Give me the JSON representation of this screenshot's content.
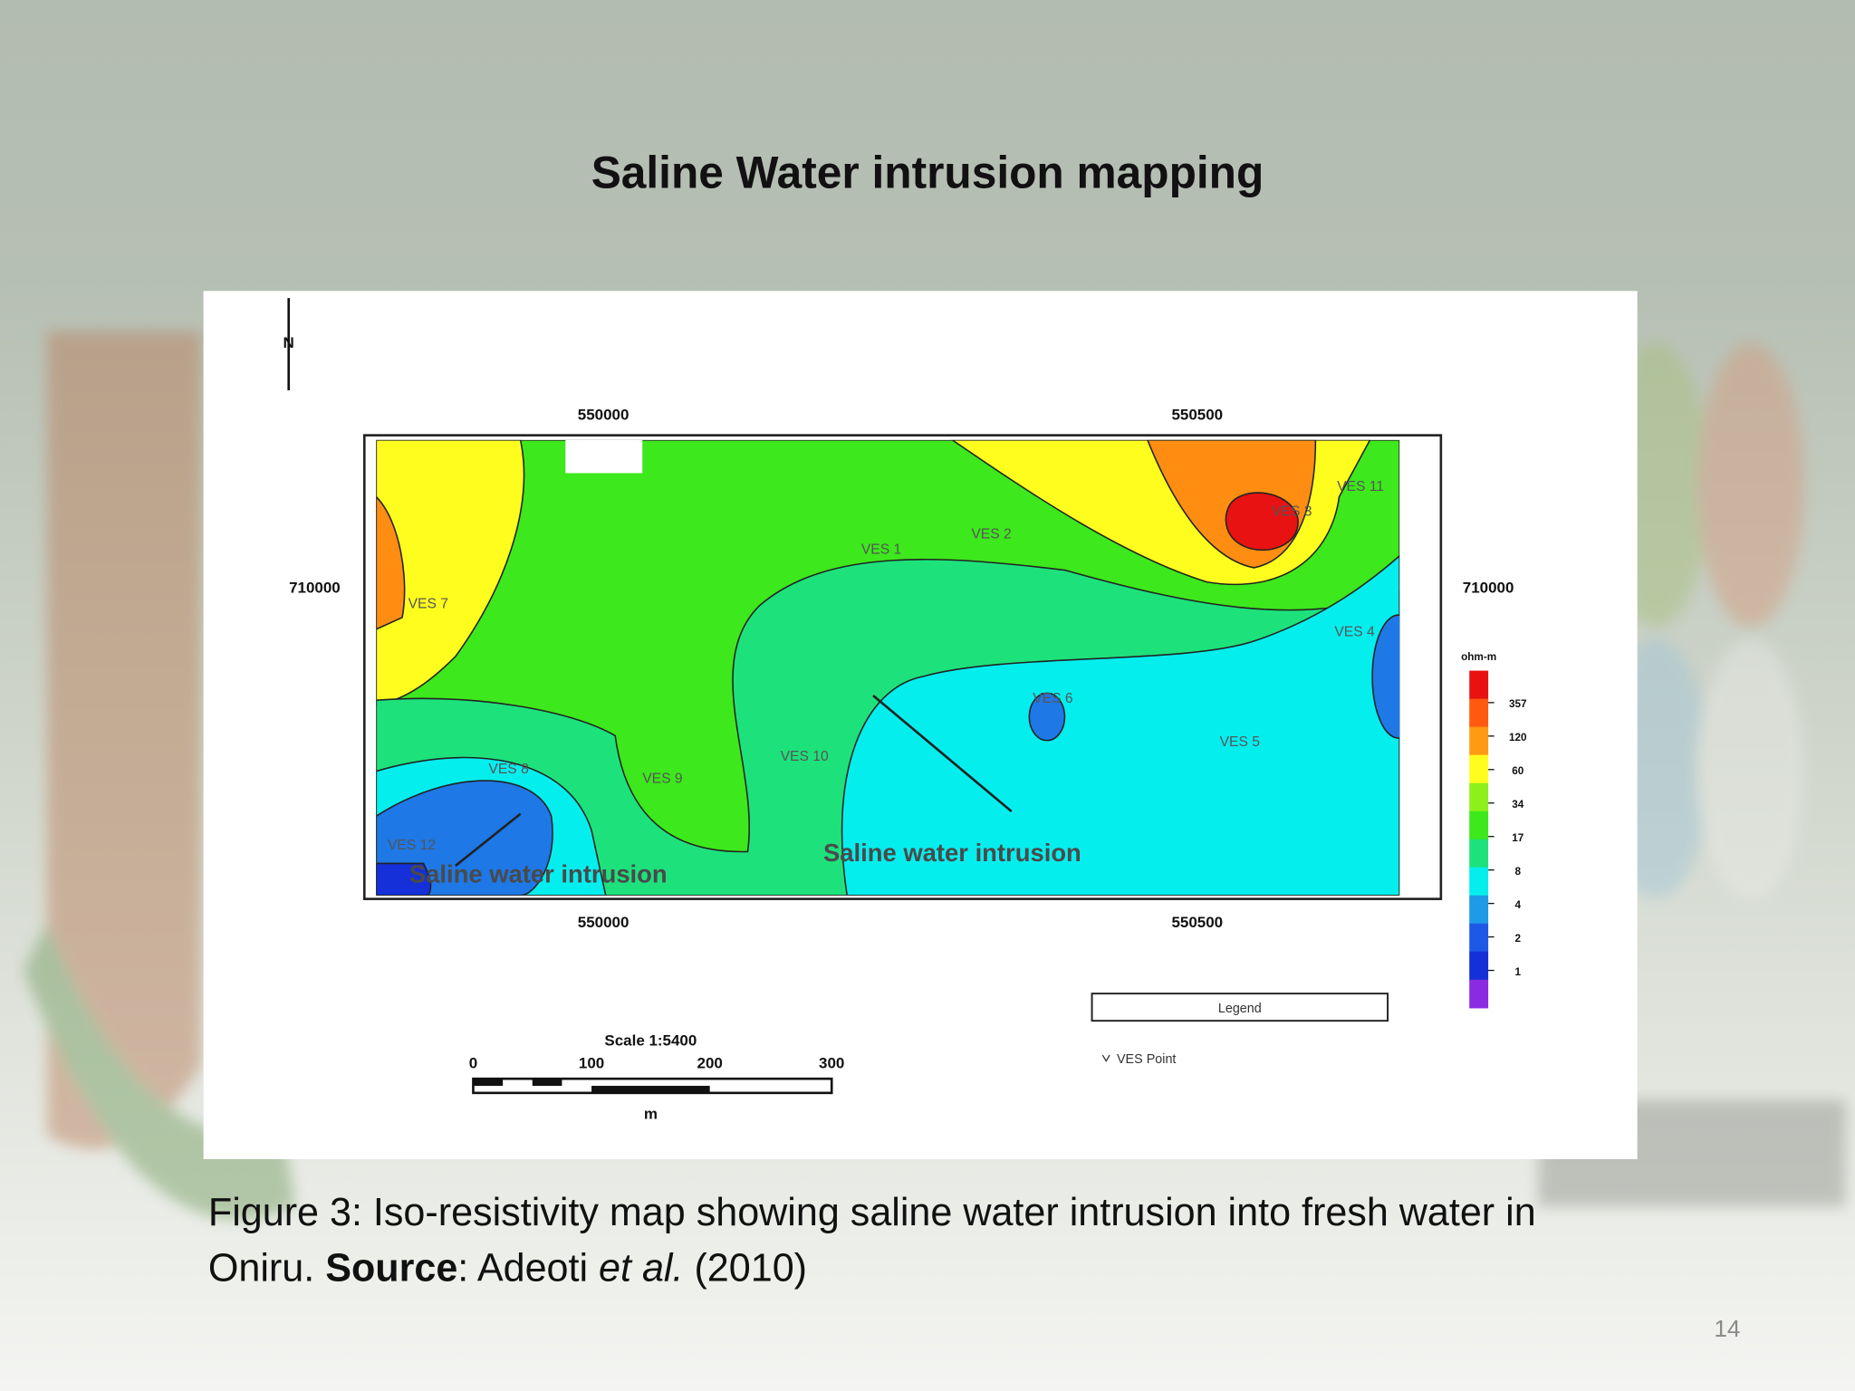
{
  "title": "Saline Water intrusion mapping",
  "map": {
    "north": "N",
    "x_ticks": [
      "550000",
      "550500"
    ],
    "y_ticks": [
      "710000"
    ],
    "ves_labels": [
      "VES 7",
      "VES 1",
      "VES 2",
      "VES 11",
      "VES 3",
      "VES 4",
      "VES 6",
      "VES 5",
      "VES 10",
      "VES 9",
      "VES 8",
      "VES 12"
    ],
    "annotations": [
      "Saline water intrusion",
      "Saline water intrusion"
    ],
    "color_scale_unit": "ohm-m",
    "color_scale_values": [
      "357",
      "120",
      "60",
      "34",
      "17",
      "8",
      "4",
      "2",
      "1"
    ],
    "legend_title": "Legend",
    "legend_entry": "VES Point",
    "scale": {
      "title": "Scale 1:5400",
      "ticks": [
        "0",
        "100",
        "200",
        "300"
      ],
      "unit": "m"
    }
  },
  "caption": {
    "line1": "Figure 3: Iso-resistivity map showing saline water intrusion into fresh water in",
    "line2": {
      "text": "Oniru. ",
      "bold": "Source",
      "after_bold": ": Adeoti ",
      "italic": "et al.",
      "end": " (2010)"
    }
  },
  "page_number": "14"
}
